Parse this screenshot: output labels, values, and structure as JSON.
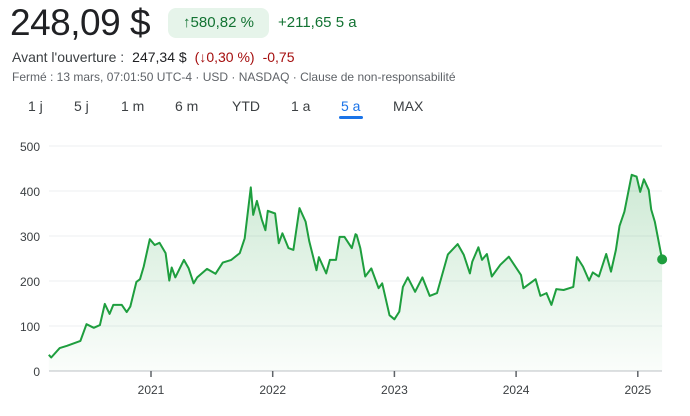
{
  "header": {
    "price": "248,09 $",
    "change_pct": "580,82 %",
    "change_abs": "+211,65",
    "period": "5 a",
    "premarket_label": "Avant l'ouverture :",
    "premarket_price": "247,34 $",
    "premarket_open_paren": "(",
    "premarket_pct": "0,30 %",
    "premarket_close_paren": ")",
    "premarket_abs": "-0,75",
    "meta": "Fermé : 13 mars, 07:01:50 UTC-4 · USD · NASDAQ · Clause de non-responsabilité"
  },
  "tabs": [
    {
      "label": "1 j"
    },
    {
      "label": "5 j"
    },
    {
      "label": "1 m"
    },
    {
      "label": "6 m"
    },
    {
      "label": "YTD"
    },
    {
      "label": "1 a"
    },
    {
      "label": "5 a",
      "active": true
    },
    {
      "label": "MAX"
    }
  ],
  "colors": {
    "line": "#1e9e3e",
    "up": "#137333",
    "down": "#a50e0e",
    "accent": "#1a73e8"
  },
  "chart_data": {
    "type": "area",
    "title": "",
    "xlabel": "",
    "ylabel": "",
    "ylim": [
      0,
      500
    ],
    "yticks": [
      "0",
      "100",
      "200",
      "300",
      "400",
      "500"
    ],
    "xticks": [
      {
        "label": "2021",
        "t": 2021
      },
      {
        "label": "2022",
        "t": 2022
      },
      {
        "label": "2023",
        "t": 2023
      },
      {
        "label": "2024",
        "t": 2024
      },
      {
        "label": "2025",
        "t": 2025
      }
    ],
    "grid": true,
    "x": [
      2020.16,
      2020.18,
      2020.25,
      2020.31,
      2020.42,
      2020.47,
      2020.53,
      2020.58,
      2020.62,
      2020.66,
      2020.69,
      2020.76,
      2020.8,
      2020.83,
      2020.88,
      2020.91,
      2020.94,
      2020.99,
      2021.03,
      2021.07,
      2021.12,
      2021.15,
      2021.17,
      2021.2,
      2021.27,
      2021.31,
      2021.35,
      2021.38,
      2021.46,
      2021.53,
      2021.59,
      2021.66,
      2021.73,
      2021.77,
      2021.82,
      2021.84,
      2021.87,
      2021.91,
      2021.94,
      2021.96,
      2022.02,
      2022.05,
      2022.08,
      2022.13,
      2022.17,
      2022.22,
      2022.27,
      2022.3,
      2022.36,
      2022.38,
      2022.44,
      2022.47,
      2022.52,
      2022.55,
      2022.59,
      2022.65,
      2022.68,
      2022.69,
      2022.72,
      2022.76,
      2022.81,
      2022.87,
      2022.9,
      2022.96,
      2023.0,
      2023.04,
      2023.07,
      2023.11,
      2023.17,
      2023.23,
      2023.29,
      2023.35,
      2023.44,
      2023.52,
      2023.57,
      2023.62,
      2023.64,
      2023.69,
      2023.72,
      2023.76,
      2023.8,
      2023.87,
      2023.94,
      2024.04,
      2024.06,
      2024.16,
      2024.2,
      2024.25,
      2024.29,
      2024.33,
      2024.39,
      2024.47,
      2024.5,
      2024.55,
      2024.6,
      2024.63,
      2024.68,
      2024.74,
      2024.78,
      2024.82,
      2024.85,
      2024.89,
      2024.95,
      2024.99,
      2025.02,
      2025.05,
      2025.09,
      2025.11,
      2025.14,
      2025.2
    ],
    "values": [
      36,
      30,
      51,
      56,
      67,
      104,
      96,
      102,
      149,
      127,
      147,
      147,
      131,
      143,
      198,
      204,
      232,
      293,
      280,
      285,
      262,
      201,
      230,
      208,
      247,
      228,
      195,
      208,
      227,
      216,
      241,
      247,
      262,
      295,
      408,
      347,
      378,
      337,
      313,
      356,
      350,
      284,
      306,
      273,
      269,
      362,
      332,
      289,
      224,
      253,
      217,
      247,
      247,
      298,
      298,
      273,
      304,
      302,
      273,
      210,
      228,
      184,
      195,
      124,
      115,
      132,
      187,
      208,
      176,
      208,
      167,
      173,
      259,
      282,
      258,
      217,
      243,
      275,
      247,
      260,
      210,
      236,
      254,
      213,
      184,
      204,
      167,
      173,
      147,
      182,
      180,
      187,
      253,
      232,
      201,
      219,
      210,
      260,
      221,
      269,
      322,
      354,
      436,
      432,
      398,
      426,
      402,
      359,
      332,
      248.09
    ]
  }
}
